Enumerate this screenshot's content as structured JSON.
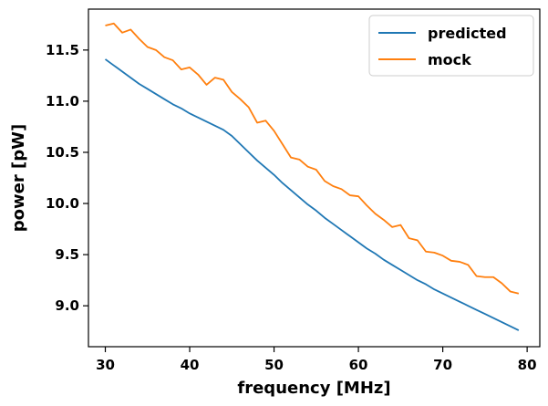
{
  "chart_data": {
    "type": "line",
    "title": "",
    "xlabel": "frequency [MHz]",
    "ylabel": "power [pW]",
    "xlim": [
      28,
      81.5
    ],
    "ylim": [
      8.6,
      11.9
    ],
    "xticks": [
      30,
      40,
      50,
      60,
      70,
      80
    ],
    "yticks": [
      9.0,
      9.5,
      10.0,
      10.5,
      11.0,
      11.5
    ],
    "xtick_labels": [
      "30",
      "40",
      "50",
      "60",
      "70",
      "80"
    ],
    "ytick_labels": [
      "9.0",
      "9.5",
      "10.0",
      "10.5",
      "11.0",
      "11.5"
    ],
    "grid": false,
    "legend_position": "top-right",
    "x": [
      30,
      31,
      32,
      33,
      34,
      35,
      36,
      37,
      38,
      39,
      40,
      41,
      42,
      43,
      44,
      45,
      46,
      47,
      48,
      49,
      50,
      51,
      52,
      53,
      54,
      55,
      56,
      57,
      58,
      59,
      60,
      61,
      62,
      63,
      64,
      65,
      66,
      67,
      68,
      69,
      70,
      71,
      72,
      73,
      74,
      75,
      76,
      77,
      78,
      79
    ],
    "series": [
      {
        "name": "predicted",
        "color": "#1f77b4",
        "values": [
          11.41,
          11.35,
          11.29,
          11.23,
          11.17,
          11.12,
          11.07,
          11.02,
          10.97,
          10.93,
          10.88,
          10.84,
          10.8,
          10.76,
          10.72,
          10.66,
          10.58,
          10.5,
          10.42,
          10.35,
          10.28,
          10.2,
          10.13,
          10.06,
          9.99,
          9.93,
          9.86,
          9.8,
          9.74,
          9.68,
          9.62,
          9.56,
          9.51,
          9.45,
          9.4,
          9.35,
          9.3,
          9.25,
          9.21,
          9.16,
          9.12,
          9.08,
          9.04,
          9.0,
          8.96,
          8.92,
          8.88,
          8.84,
          8.8,
          8.76
        ]
      },
      {
        "name": "mock",
        "color": "#ff7f0e",
        "values": [
          11.74,
          11.76,
          11.67,
          11.7,
          11.61,
          11.53,
          11.5,
          11.43,
          11.4,
          11.31,
          11.33,
          11.26,
          11.16,
          11.23,
          11.21,
          11.09,
          11.02,
          10.94,
          10.79,
          10.81,
          10.71,
          10.58,
          10.45,
          10.43,
          10.36,
          10.33,
          10.22,
          10.17,
          10.14,
          10.08,
          10.07,
          9.98,
          9.9,
          9.84,
          9.77,
          9.79,
          9.66,
          9.64,
          9.53,
          9.52,
          9.49,
          9.44,
          9.43,
          9.4,
          9.29,
          9.28,
          9.28,
          9.22,
          9.14,
          9.12
        ]
      }
    ]
  }
}
